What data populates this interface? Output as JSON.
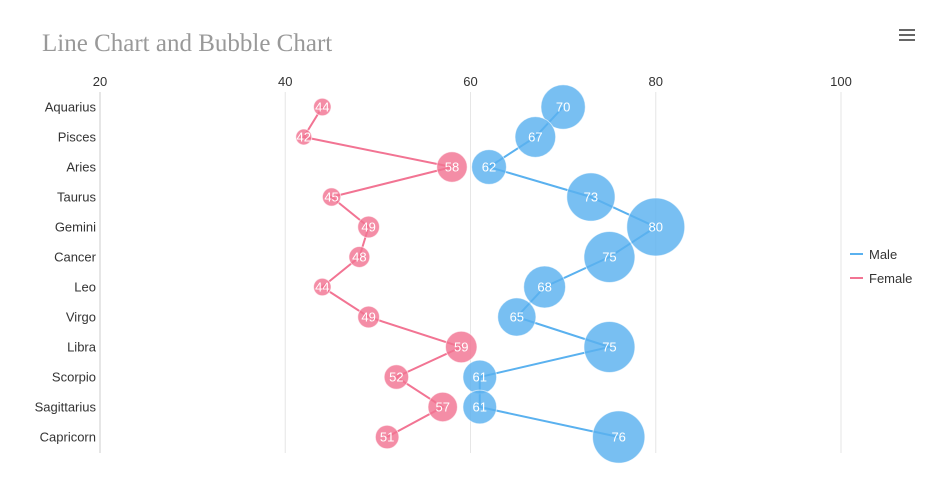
{
  "chart_data": {
    "type": "line",
    "title": "Line Chart and Bubble Chart",
    "orientation": "horizontal",
    "categories": [
      "Aquarius",
      "Pisces",
      "Aries",
      "Taurus",
      "Gemini",
      "Cancer",
      "Leo",
      "Virgo",
      "Libra",
      "Scorpio",
      "Sagittarius",
      "Capricorn"
    ],
    "xlim": [
      20,
      100
    ],
    "x_ticks": [
      20,
      40,
      60,
      80,
      100
    ],
    "grid": true,
    "legend_position": "right",
    "bubble_size_encodes": "value",
    "series": [
      {
        "name": "Male",
        "color": "#5ab1ef",
        "values": [
          70,
          67,
          62,
          73,
          80,
          75,
          68,
          65,
          75,
          61,
          61,
          76
        ]
      },
      {
        "name": "Female",
        "color": "#f27493",
        "values": [
          44,
          42,
          58,
          45,
          49,
          48,
          44,
          49,
          59,
          52,
          57,
          51
        ]
      }
    ]
  },
  "toolbar": {
    "menu_icon": "hamburger-menu-icon"
  }
}
